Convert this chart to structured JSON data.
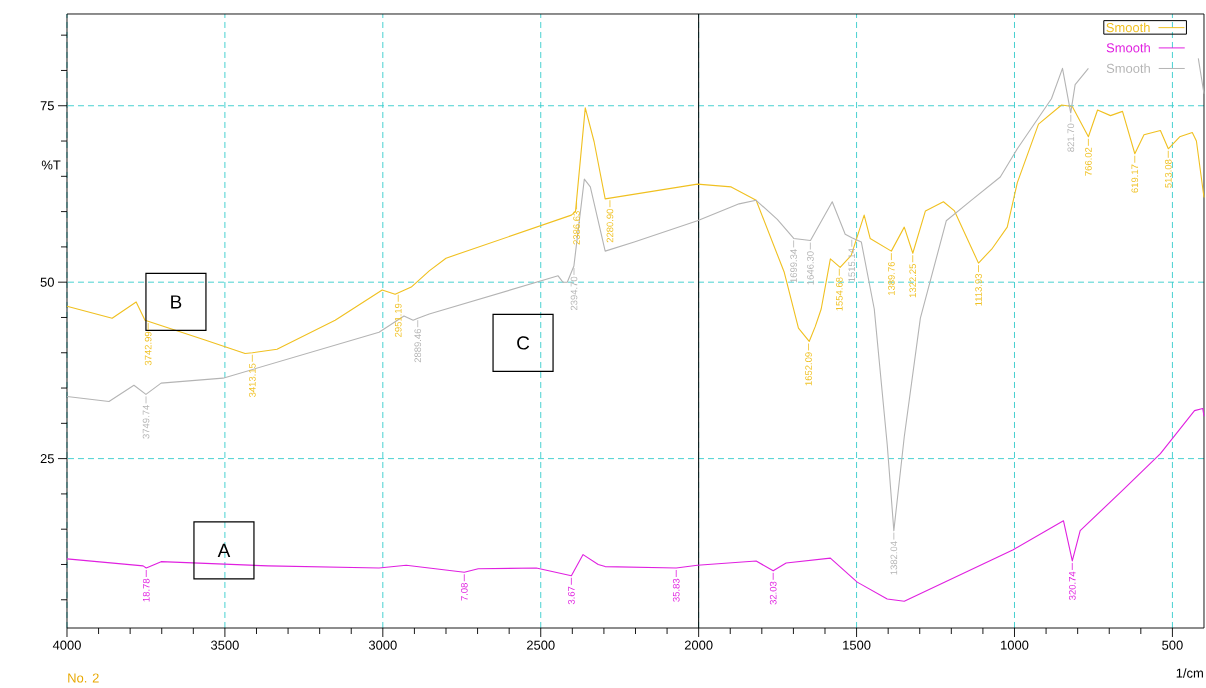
{
  "chart_data": {
    "type": "line",
    "xlabel": "1/cm",
    "ylabel": "%T",
    "xlim": [
      4000,
      400
    ],
    "ylim": [
      1,
      88
    ],
    "xticks": [
      4000,
      {
        "value": 3900,
        "label": null
      },
      {
        "value": 3800,
        "label": null
      },
      {
        "value": 3700,
        "label": null
      },
      {
        "value": 3600,
        "label": null
      },
      3500,
      {
        "value": 3400,
        "label": null
      },
      {
        "value": 3300,
        "label": null
      },
      {
        "value": 3200,
        "label": null
      },
      {
        "value": 3100,
        "label": null
      },
      3000,
      {
        "value": 2900,
        "label": null
      },
      {
        "value": 2800,
        "label": null
      },
      {
        "value": 2700,
        "label": null
      },
      {
        "value": 2600,
        "label": null
      },
      2500,
      {
        "value": 2400,
        "label": null
      },
      {
        "value": 2300,
        "label": null
      },
      {
        "value": 2200,
        "label": null
      },
      {
        "value": 2100,
        "label": null
      },
      2000,
      {
        "value": 1900,
        "label": null
      },
      {
        "value": 1800,
        "label": null
      },
      {
        "value": 1700,
        "label": null
      },
      {
        "value": 1600,
        "label": null
      },
      1500,
      {
        "value": 1400,
        "label": null
      },
      {
        "value": 1300,
        "label": null
      },
      {
        "value": 1200,
        "label": null
      },
      {
        "value": 1100,
        "label": null
      },
      1000,
      {
        "value": 900,
        "label": null
      },
      {
        "value": 800,
        "label": null
      },
      {
        "value": 700,
        "label": null
      },
      {
        "value": 600,
        "label": null
      },
      500
    ],
    "yticks": [
      {
        "value": 5,
        "label": null
      },
      {
        "value": 10,
        "label": null
      },
      {
        "value": 15,
        "label": null
      },
      {
        "value": 20,
        "label": null
      },
      25,
      {
        "value": 30,
        "label": null
      },
      {
        "value": 35,
        "label": null
      },
      {
        "value": 40,
        "label": null
      },
      {
        "value": 45,
        "label": null
      },
      50,
      {
        "value": 55,
        "label": null
      },
      {
        "value": 60,
        "label": null
      },
      {
        "value": 65,
        "label": null
      },
      {
        "value": 70,
        "label": null
      },
      75,
      {
        "value": 80,
        "label": null
      },
      {
        "value": 85,
        "label": null
      }
    ],
    "grid": true,
    "legend": "top right",
    "ref_lines": [
      {
        "axis": "x",
        "value": 2000,
        "color": "#000000"
      }
    ],
    "series": [
      {
        "name": "Smooth",
        "color": "#f0c020",
        "x": [
          4000,
          3857,
          3781,
          3753,
          3563,
          3436,
          3413,
          3335,
          3151,
          3002,
          2961,
          2910,
          2853,
          2800,
          2403,
          2390,
          2359,
          2331,
          2296,
          2004,
          1897,
          1818,
          1729,
          1684,
          1650,
          1631,
          1612,
          1583,
          1552,
          1517,
          1476,
          1457,
          1390,
          1349,
          1322,
          1282,
          1225,
          1190,
          1114,
          1070,
          1023,
          991,
          924,
          851,
          817,
          766,
          737,
          696,
          658,
          619,
          590,
          538,
          513,
          477,
          437,
          424,
          400
        ],
        "values": [
          46.6,
          44.9,
          47.2,
          44.6,
          41.8,
          39.9,
          40.0,
          40.5,
          44.6,
          48.9,
          48.3,
          49.3,
          51.6,
          53.4,
          59.5,
          60.0,
          74.7,
          69.9,
          61.8,
          63.9,
          63.5,
          61.6,
          51.4,
          43.5,
          41.6,
          43.7,
          46.2,
          53.3,
          52.1,
          53.8,
          59.5,
          56.2,
          54.4,
          57.8,
          54.1,
          60.1,
          61.4,
          60.1,
          52.7,
          54.8,
          57.8,
          64.1,
          72.4,
          75.1,
          74.9,
          70.6,
          74.4,
          73.6,
          74.2,
          68.2,
          70.9,
          71.5,
          68.9,
          70.6,
          71.2,
          70.0,
          62.0
        ]
      },
      {
        "name": "Smooth",
        "color": "#e020e0",
        "x": [
          4000,
          3759,
          3749,
          3702,
          3363,
          3012,
          2926,
          2742,
          2698,
          2514,
          2403,
          2366,
          2318,
          2296,
          2071,
          2004,
          1818,
          1764,
          1723,
          1583,
          1498,
          1403,
          1349,
          1004,
          845,
          817,
          792,
          658,
          538,
          430,
          404,
          400
        ],
        "values": [
          10.8,
          9.8,
          9.5,
          10.4,
          9.8,
          9.5,
          9.9,
          8.9,
          9.4,
          9.5,
          8.4,
          11.4,
          10.0,
          9.7,
          9.5,
          9.9,
          10.5,
          9.1,
          10.2,
          10.9,
          7.5,
          5.1,
          4.8,
          12.1,
          16.2,
          10.5,
          14.8,
          20.5,
          25.7,
          31.8,
          32.1,
          31.0
        ]
      },
      {
        "name": "Smooth",
        "color": "#b4b4b4",
        "x": [
          4000,
          3867,
          3788,
          3750,
          3702,
          3506,
          3012,
          2933,
          2904,
          2889,
          2853,
          2445,
          2430,
          2416,
          2395,
          2362,
          2343,
          2296,
          2204,
          2004,
          1872,
          1818,
          1751,
          1699,
          1646,
          1577,
          1536,
          1515,
          1485,
          1444,
          1403,
          1382,
          1349,
          1298,
          1216,
          1137,
          1045,
          991,
          883,
          848,
          822,
          808,
          766,
          600,
          418,
          400
        ],
        "values": [
          33.8,
          33.1,
          35.4,
          34.1,
          35.7,
          36.4,
          42.9,
          45.2,
          44.6,
          44.9,
          45.5,
          50.9,
          50.0,
          50.0,
          52.3,
          64.6,
          63.5,
          54.4,
          55.7,
          58.7,
          61.1,
          61.6,
          58.9,
          56.2,
          55.9,
          61.4,
          56.8,
          56.3,
          55.7,
          46.2,
          27.0,
          14.8,
          28.1,
          44.9,
          58.7,
          61.6,
          64.9,
          68.9,
          76.0,
          80.3,
          74.0,
          78.0,
          80.3,
          null,
          81.7,
          76.7
        ]
      }
    ],
    "annotations": [
      "No. 2",
      "A",
      "B",
      "C",
      {
        "text": "3742.99",
        "x": 3742.99,
        "y": 44.5
      },
      {
        "text": "3413.15",
        "x": 3413.15,
        "y": 40.0
      },
      {
        "text": "2951.19",
        "x": 2951.19,
        "y": 48.5
      },
      {
        "text": "2386.63",
        "x": 2386.63,
        "y": 61.6
      },
      {
        "text": "2280.90",
        "x": 2280.9,
        "y": 61.9
      },
      {
        "text": "1652.09",
        "x": 1652.09,
        "y": 41.6
      },
      {
        "text": "1554.68",
        "x": 1554.68,
        "y": 52.2
      },
      {
        "text": "1389.76",
        "x": 1389.76,
        "y": 54.4
      },
      {
        "text": "1322.25",
        "x": 1322.25,
        "y": 54.1
      },
      {
        "text": "1113.93",
        "x": 1113.93,
        "y": 52.7
      },
      {
        "text": "766.02",
        "x": 766.02,
        "y": 70.6
      },
      {
        "text": "619.17",
        "x": 619.17,
        "y": 68.2
      },
      {
        "text": "513.08",
        "x": 513.08,
        "y": 68.9
      },
      {
        "text": "3749.74",
        "x": 3749.74,
        "y": 34.1
      },
      {
        "text": "2889.46",
        "x": 2889.46,
        "y": 44.9
      },
      {
        "text": "2394.70",
        "x": 2394.7,
        "y": 52.3
      },
      {
        "text": "1699.34",
        "x": 1699.34,
        "y": 56.2
      },
      {
        "text": "1646.30",
        "x": 1646.3,
        "y": 55.9
      },
      {
        "text": "1515.14",
        "x": 1515.14,
        "y": 56.3
      },
      {
        "text": "1382.04",
        "x": 1382.04,
        "y": 14.8
      },
      {
        "text": "821.70",
        "x": 821.7,
        "y": 74.0
      },
      {
        "text": "18.78",
        "x": 3749,
        "y": 9.5
      },
      {
        "text": "7.08",
        "x": 2742,
        "y": 8.9
      },
      {
        "text": "3.67",
        "x": 2403,
        "y": 8.4
      },
      {
        "text": "35.83",
        "x": 2071,
        "y": 9.5
      },
      {
        "text": "32.03",
        "x": 1764,
        "y": 9.1
      },
      {
        "text": "320.74",
        "x": 817,
        "y": 10.5
      }
    ]
  }
}
